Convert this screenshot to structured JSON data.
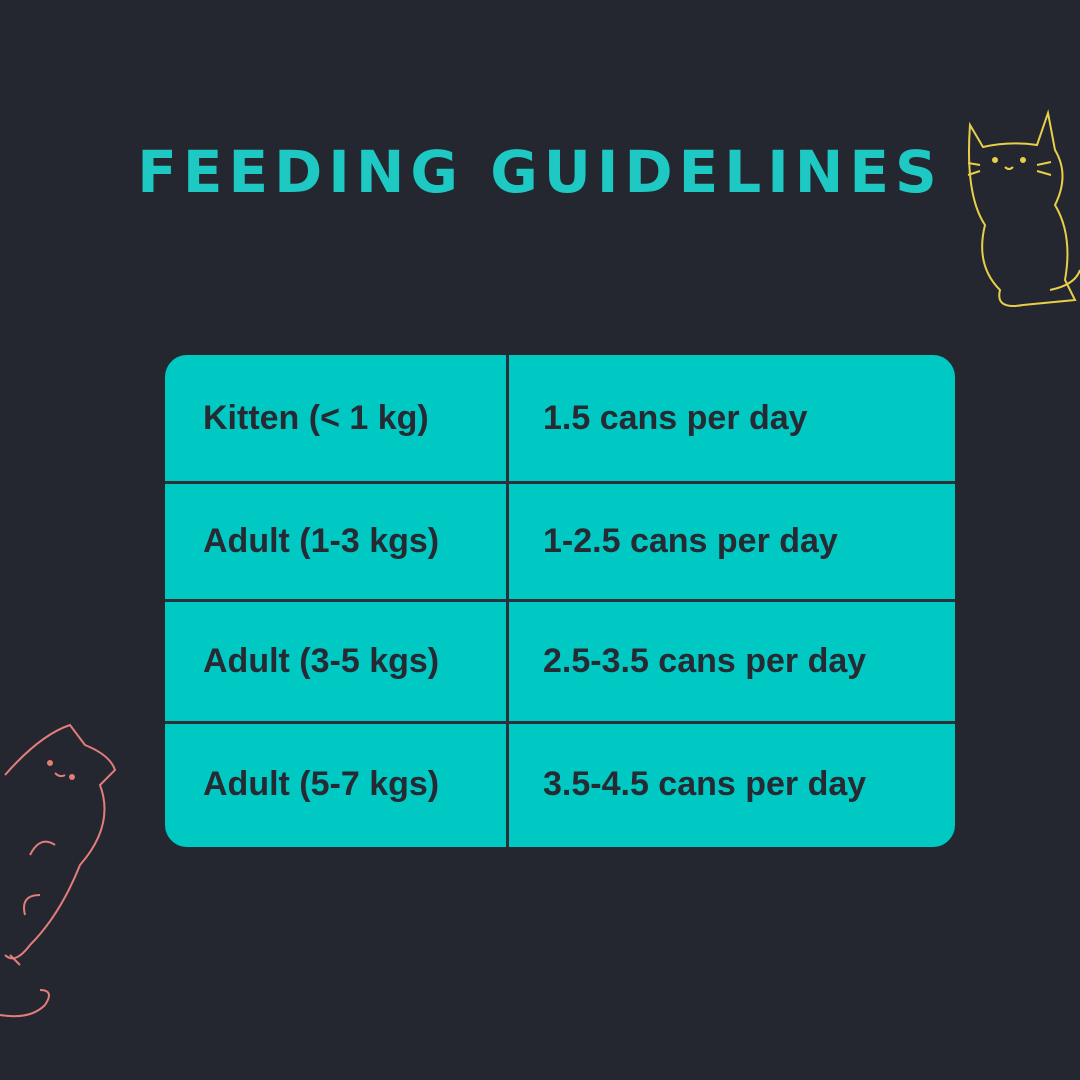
{
  "header": {
    "title": "FEEDING GUIDELINES"
  },
  "table": {
    "rows": [
      [
        "Kitten (< 1 kg)",
        "1.5 cans per day"
      ],
      [
        "Adult (1-3 kgs)",
        "1-2.5 cans per day"
      ],
      [
        "Adult (3-5 kgs)",
        "2.5-3.5 cans per day"
      ],
      [
        "Adult (5-7 kgs)",
        "3.5-4.5 cans per day"
      ]
    ]
  }
}
